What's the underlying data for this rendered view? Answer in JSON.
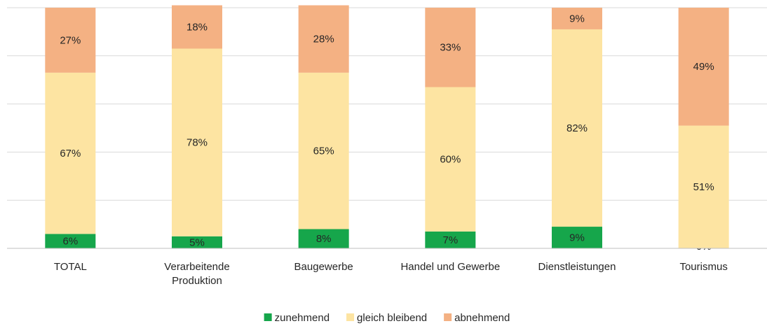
{
  "chart_data": {
    "type": "stacked_bar",
    "categories": [
      "TOTAL",
      "Verarbeitende Produktion",
      "Baugewerbe",
      "Handel und Gewerbe",
      "Dienstleistungen",
      "Tourismus"
    ],
    "series": [
      {
        "name": "zunehmend",
        "color": "#16a64b",
        "values": [
          6,
          5,
          8,
          7,
          9,
          0
        ],
        "value_labels": [
          "6%",
          "5%",
          "8%",
          "7%",
          "9%",
          "0%"
        ]
      },
      {
        "name": "gleich bleibend",
        "color": "#fde4a2",
        "values": [
          67,
          78,
          65,
          60,
          82,
          51
        ],
        "value_labels": [
          "67%",
          "78%",
          "65%",
          "60%",
          "82%",
          "51%"
        ]
      },
      {
        "name": "abnehmend",
        "color": "#f4b183",
        "values": [
          27,
          18,
          28,
          33,
          9,
          49
        ],
        "value_labels": [
          "27%",
          "18%",
          "28%",
          "33%",
          "9%",
          "49%"
        ]
      }
    ],
    "ylim": [
      0,
      100
    ],
    "yticks": [
      0,
      20,
      40,
      60,
      80,
      100
    ],
    "grid": true,
    "legend": "bottom"
  }
}
